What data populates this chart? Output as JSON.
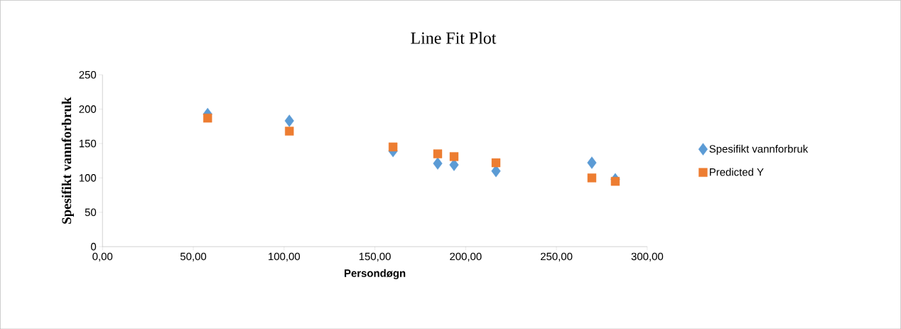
{
  "chart_data": {
    "type": "scatter",
    "title": "Line Fit  Plot",
    "xlabel": "Persondøgn",
    "ylabel": "Spesifikt vannforbruk",
    "x": [
      57.9,
      102.9,
      160,
      184.6,
      193.6,
      216.7,
      269.5,
      282.4
    ],
    "series": [
      {
        "name": "Spesifikt vannforbruk",
        "color": "#5b9bd5",
        "marker": "diamond",
        "values": [
          193,
          183,
          139,
          121,
          119,
          110,
          122,
          98
        ]
      },
      {
        "name": "Predicted Y",
        "color": "#ed7d31",
        "marker": "square",
        "values": [
          187,
          168,
          145,
          135,
          131,
          122,
          100,
          95
        ]
      }
    ],
    "xlim": [
      0,
      300
    ],
    "ylim": [
      0,
      250
    ],
    "xticks": [
      {
        "value": 0,
        "label": "0,00"
      },
      {
        "value": 50,
        "label": "50,00"
      },
      {
        "value": 100,
        "label": "100,00"
      },
      {
        "value": 150,
        "label": "150,00"
      },
      {
        "value": 200,
        "label": "200,00"
      },
      {
        "value": 250,
        "label": "250,00"
      },
      {
        "value": 300,
        "label": "300,00"
      }
    ],
    "yticks": [
      0,
      50,
      100,
      150,
      200,
      250
    ],
    "grid": false,
    "legend": "right"
  }
}
